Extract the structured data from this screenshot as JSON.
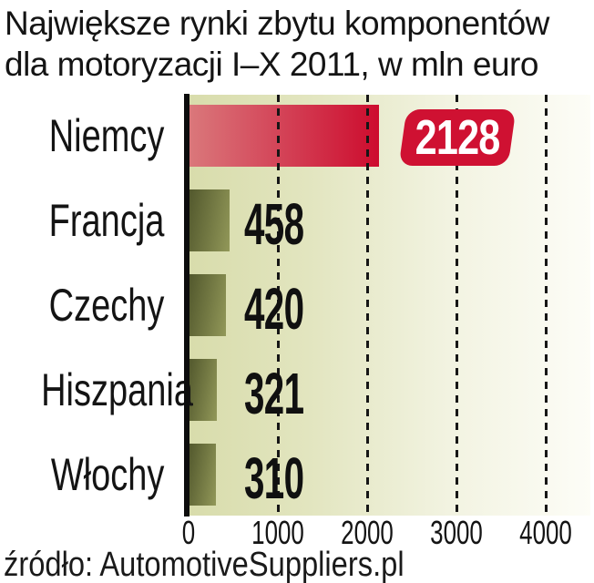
{
  "title": {
    "line1": "Największe rynki zbytu komponentów",
    "line2": "dla motoryzacji I–X 2011, w mln euro"
  },
  "source": "źródło: AutomotiveSuppliers.pl",
  "rows": [
    {
      "label": "Niemcy",
      "value": "2128"
    },
    {
      "label": "Francja",
      "value": "458"
    },
    {
      "label": "Czechy",
      "value": "420"
    },
    {
      "label": "Hiszpania",
      "value": "321"
    },
    {
      "label": "Włochy",
      "value": "310"
    }
  ],
  "x_ticks": [
    "0",
    "1000",
    "2000",
    "3000",
    "4000"
  ],
  "chart_data": {
    "type": "bar",
    "orientation": "horizontal",
    "title": "Największe rynki zbytu komponentów dla motoryzacji I–X 2011, w mln euro",
    "categories": [
      "Niemcy",
      "Francja",
      "Czechy",
      "Hiszpania",
      "Włochy"
    ],
    "values": [
      2128,
      458,
      420,
      321,
      310
    ],
    "unit": "mln euro",
    "xlabel": "",
    "ylabel": "",
    "xlim": [
      0,
      4500
    ],
    "x_tick_values": [
      0,
      1000,
      2000,
      3000,
      4000
    ],
    "grid": "dashed-vertical",
    "legend": "none",
    "source": "AutomotiveSuppliers.pl",
    "highlight_category": "Niemcy",
    "colors": {
      "highlight_bar": "#cd0c2e",
      "highlight_bar_light": "#da787b",
      "bar": "#747a44",
      "badge": "#cf1132",
      "badge_text": "#ffffff",
      "plot_bg_left": "#d8dcab",
      "plot_bg_right": "#fdfdf7",
      "axis": "#0d0d0d",
      "text": "#141414"
    }
  }
}
